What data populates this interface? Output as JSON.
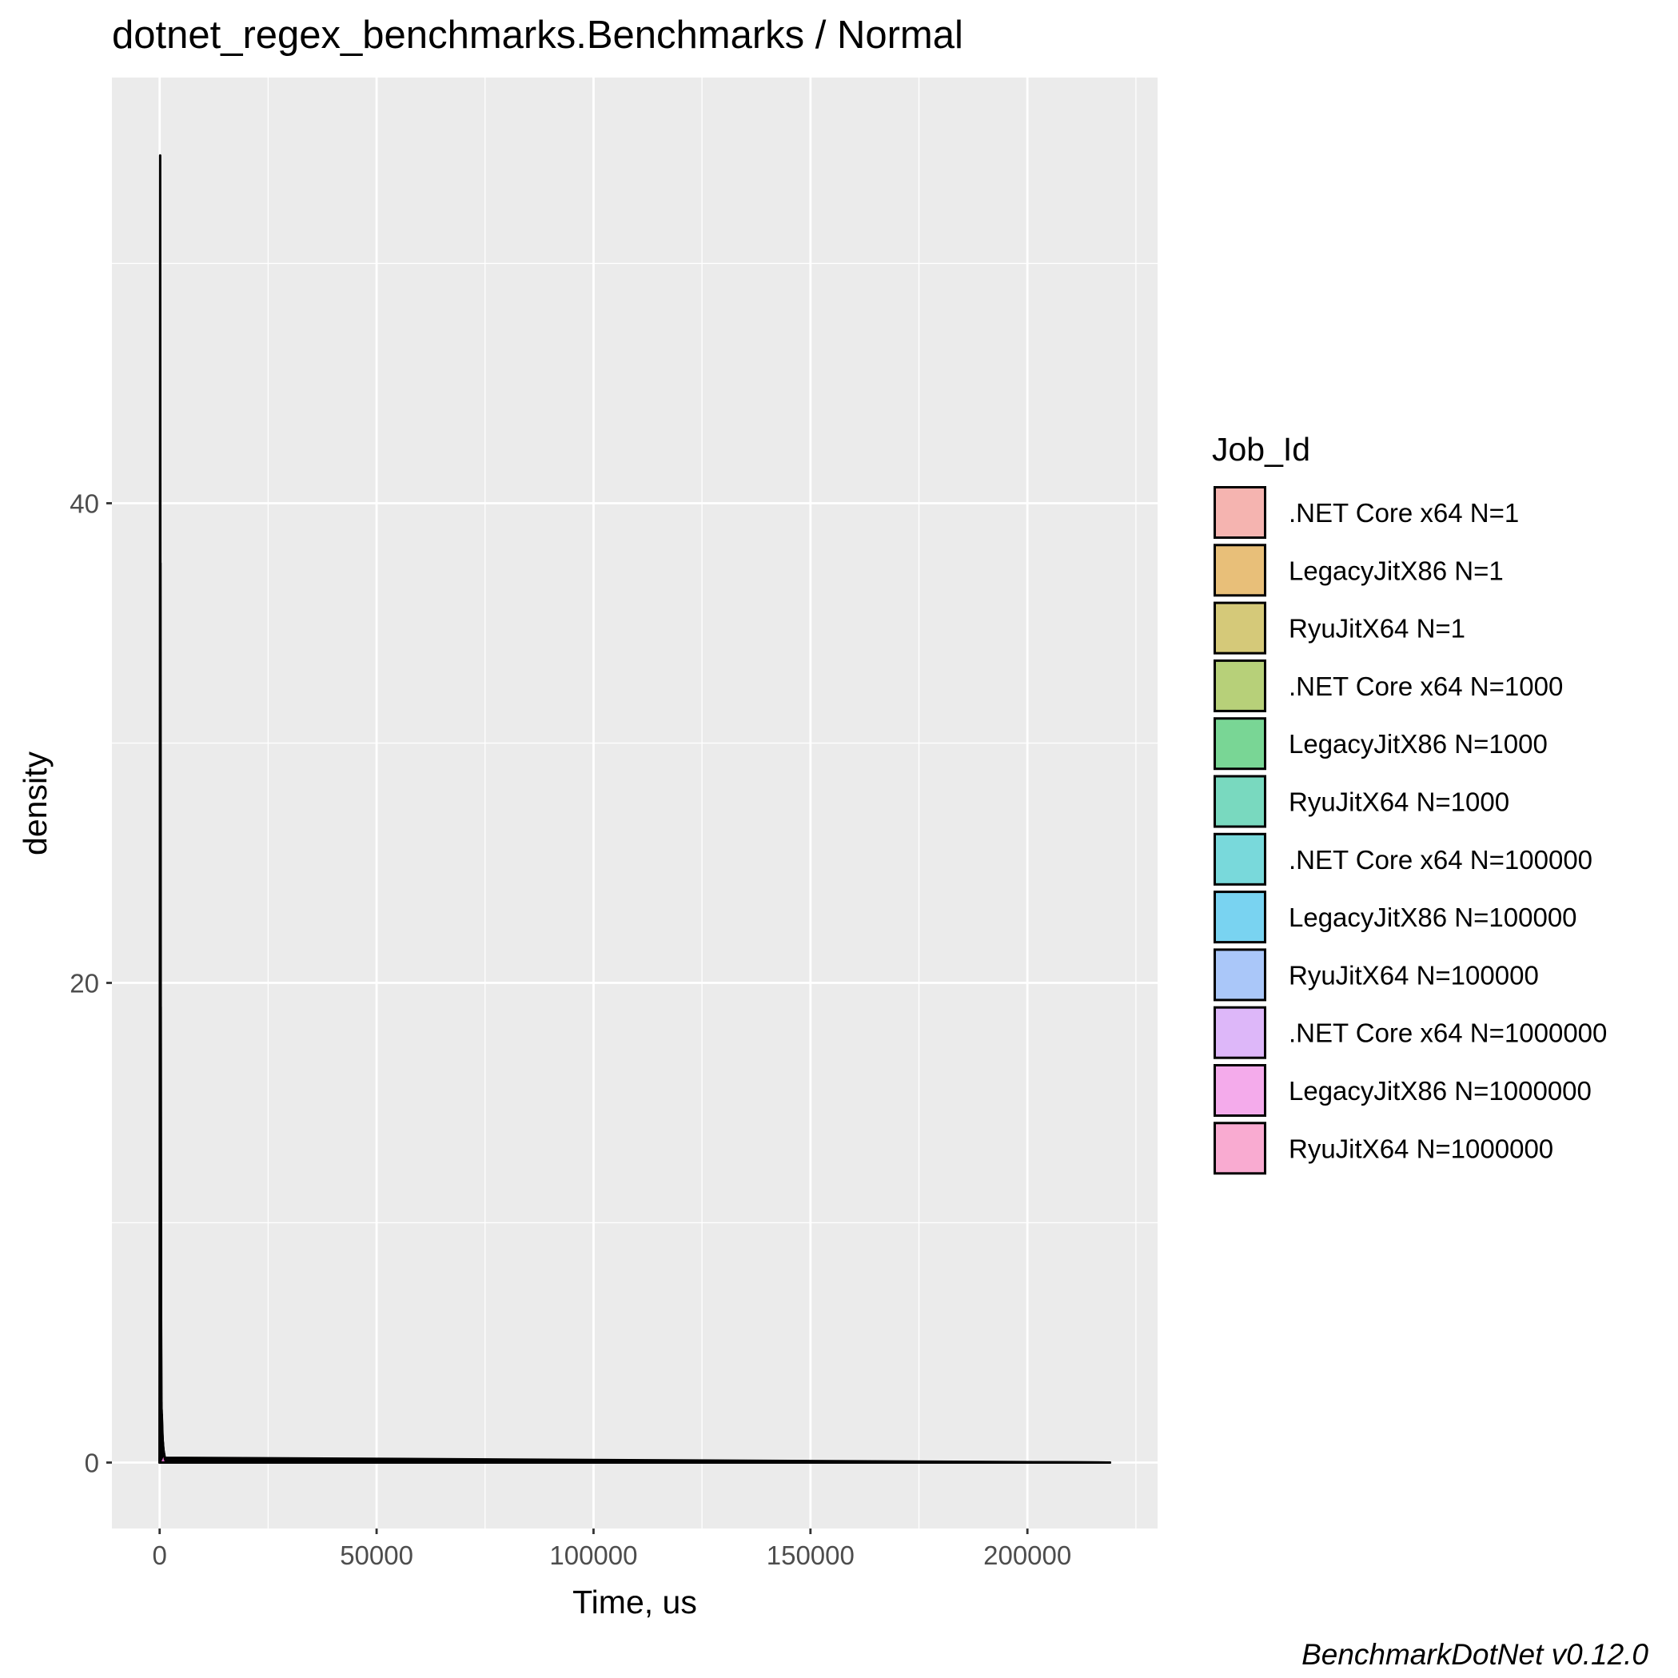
{
  "chart_data": {
    "type": "area",
    "title": "dotnet_regex_benchmarks.Benchmarks / Normal",
    "xlabel": "Time, us",
    "ylabel": "density",
    "xlim": [
      -11000,
      230000
    ],
    "ylim": [
      -2.75,
      57.75
    ],
    "x_ticks": [
      0,
      50000,
      100000,
      150000,
      200000
    ],
    "x_tick_labels": [
      "0",
      "50000",
      "100000",
      "150000",
      "200000"
    ],
    "x_minor_ticks": [
      25000,
      75000,
      125000,
      175000,
      225000
    ],
    "y_ticks": [
      0,
      20,
      40
    ],
    "y_tick_labels": [
      "0",
      "20",
      "40"
    ],
    "y_minor_ticks": [
      10,
      30,
      50
    ],
    "grid": true,
    "legend": {
      "title": "Job_Id",
      "position": "right",
      "alpha": 0.5
    },
    "series": [
      {
        "name": ".NET Core x64 N=1",
        "color": "#F8766D",
        "x": [
          0,
          120,
          200,
          300,
          219000
        ],
        "y": [
          0,
          54.5,
          20,
          0.2,
          0
        ]
      },
      {
        "name": "LegacyJitX86 N=1",
        "color": "#DE8C00",
        "x": [
          0,
          180,
          260,
          380,
          219000
        ],
        "y": [
          0,
          37.5,
          12,
          0.1,
          0
        ]
      },
      {
        "name": "RyuJitX64 N=1",
        "color": "#B79F00",
        "x": [
          0,
          250,
          330,
          460,
          219000
        ],
        "y": [
          0,
          19,
          6,
          0.1,
          0
        ]
      },
      {
        "name": ".NET Core x64 N=1000",
        "color": "#7CAE00",
        "x": [
          0,
          400,
          600,
          900,
          219000
        ],
        "y": [
          0,
          2.5,
          0.8,
          0.05,
          0
        ]
      },
      {
        "name": "LegacyJitX86 N=1000",
        "color": "#00BA38",
        "x": [
          0,
          450,
          700,
          1000,
          219000
        ],
        "y": [
          0,
          2.2,
          0.7,
          0.05,
          0
        ]
      },
      {
        "name": "RyuJitX64 N=1000",
        "color": "#00C08B",
        "x": [
          0,
          500,
          750,
          1100,
          219000
        ],
        "y": [
          0,
          2.0,
          0.6,
          0.05,
          0
        ]
      },
      {
        "name": ".NET Core x64 N=100000",
        "color": "#00BFC4",
        "x": [
          0,
          600,
          900,
          1300,
          219000
        ],
        "y": [
          0,
          1.2,
          0.4,
          0.02,
          0
        ]
      },
      {
        "name": "LegacyJitX86 N=100000",
        "color": "#00B4F0",
        "x": [
          0,
          650,
          950,
          1400,
          219000
        ],
        "y": [
          0,
          1.0,
          0.3,
          0.02,
          0
        ]
      },
      {
        "name": "RyuJitX64 N=100000",
        "color": "#619CFF",
        "x": [
          0,
          700,
          1000,
          1500,
          219000
        ],
        "y": [
          0,
          0.9,
          0.3,
          0.02,
          0
        ]
      },
      {
        "name": ".NET Core x64 N=1000000",
        "color": "#C77CFF",
        "x": [
          0,
          800,
          1100,
          1600,
          219000
        ],
        "y": [
          0,
          0.6,
          0.2,
          0.01,
          0
        ]
      },
      {
        "name": "LegacyJitX86 N=1000000",
        "color": "#F564E3",
        "x": [
          0,
          900,
          1200,
          1700,
          219000
        ],
        "y": [
          0,
          0.5,
          0.15,
          0.01,
          0
        ]
      },
      {
        "name": "RyuJitX64 N=1000000",
        "color": "#FF64B0",
        "x": [
          0,
          1000,
          1300,
          1800,
          219000
        ],
        "y": [
          0,
          0.4,
          0.1,
          0.01,
          0
        ]
      }
    ],
    "caption": "BenchmarkDotNet v0.12.0"
  }
}
